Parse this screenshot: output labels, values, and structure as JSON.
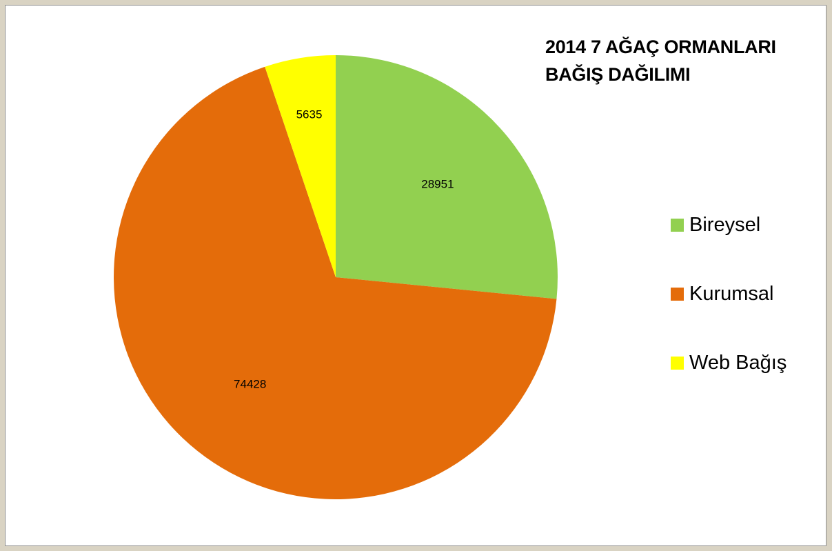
{
  "chart_data": {
    "type": "pie",
    "title": "2014 7 AĞAÇ ORMANLARI BAĞIŞ DAĞILIMI",
    "title_lines": [
      "2014 7 AĞAÇ ORMANLARI",
      "BAĞIŞ DAĞILIMI"
    ],
    "categories": [
      "Bireysel",
      "Kurumsal",
      "Web Bağış"
    ],
    "values": [
      28951,
      74428,
      5635
    ],
    "data_labels": [
      "28951",
      "74428",
      "5635"
    ],
    "colors": [
      "#92d050",
      "#e46c0a",
      "#ffff00"
    ],
    "start_angle": "12 o'clock",
    "direction": "clockwise",
    "legend_position": "right"
  }
}
